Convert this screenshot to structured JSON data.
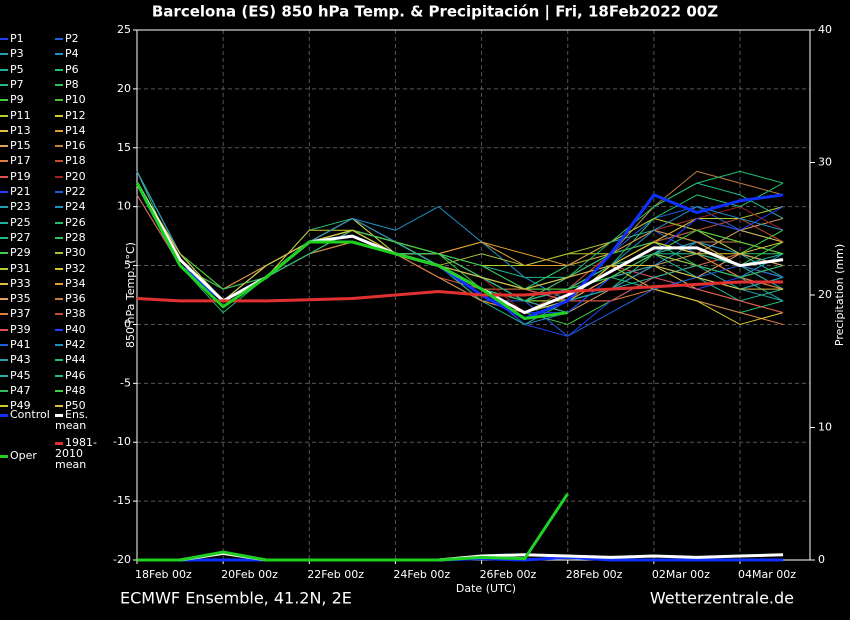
{
  "chart_data": {
    "type": "line",
    "title": "Barcelona  (ES)  850 hPa Temp. & Precipitación | Fri, 18Feb2022 00Z",
    "y_label": "850 hPa Temp. (°C)",
    "y2_label": "Precipitation (mm)",
    "x_label": "Date (UTC)",
    "footer_left": "ECMWF Ensemble, 41.2N, 2E",
    "footer_right": "Wetterzentrale.de",
    "grid": true,
    "x": [
      0,
      24,
      48,
      72,
      96,
      120,
      144,
      168,
      192,
      216,
      240,
      264,
      288,
      312,
      336,
      360
    ],
    "xlim": [
      0,
      375
    ],
    "xticks": [
      {
        "value": 0,
        "label": "18Feb 00z"
      },
      {
        "value": 48,
        "label": "20Feb 00z"
      },
      {
        "value": 96,
        "label": "22Feb 00z"
      },
      {
        "value": 144,
        "label": "24Feb 00z"
      },
      {
        "value": 192,
        "label": "26Feb 00z"
      },
      {
        "value": 240,
        "label": "28Feb 00z"
      },
      {
        "value": 288,
        "label": "02Mar 00z"
      },
      {
        "value": 336,
        "label": "04Mar 00z"
      }
    ],
    "ylim": [
      -20,
      25
    ],
    "yticks": [
      -20,
      -15,
      -10,
      -5,
      0,
      5,
      10,
      15,
      20,
      25
    ],
    "y2lim": [
      0,
      40
    ],
    "y2ticks": [
      0,
      10,
      20,
      30,
      40
    ],
    "series": [
      {
        "name": "P1",
        "color": "#2040ff",
        "values": [
          12,
          5,
          2,
          4,
          7,
          8,
          6,
          5,
          3,
          1,
          3,
          5,
          7,
          8,
          6,
          5
        ]
      },
      {
        "name": "P2",
        "color": "#2060e0",
        "values": [
          13,
          6,
          2,
          5,
          7,
          8,
          6,
          4,
          2,
          2,
          4,
          6,
          9,
          10,
          8,
          7
        ]
      },
      {
        "name": "P3",
        "color": "#20a0b0",
        "values": [
          12,
          5,
          2,
          4,
          6,
          7,
          6,
          6,
          4,
          3,
          2,
          3,
          5,
          4,
          3,
          2
        ]
      },
      {
        "name": "P4",
        "color": "#2090c8",
        "values": [
          12,
          6,
          2,
          4,
          7,
          8,
          7,
          5,
          3,
          0,
          1,
          4,
          6,
          5,
          4,
          6
        ]
      },
      {
        "name": "P5",
        "color": "#20b0a0",
        "values": [
          11,
          5,
          3,
          5,
          7,
          8,
          6,
          5,
          4,
          3,
          5,
          7,
          8,
          7,
          6,
          4
        ]
      },
      {
        "name": "P6",
        "color": "#20c070",
        "values": [
          12,
          5,
          1,
          4,
          8,
          9,
          7,
          5,
          2,
          1,
          3,
          4,
          3,
          2,
          1,
          2
        ]
      },
      {
        "name": "P7",
        "color": "#20b890",
        "values": [
          12,
          6,
          2,
          4,
          7,
          7,
          6,
          6,
          5,
          4,
          4,
          6,
          10,
          12,
          11,
          9
        ]
      },
      {
        "name": "P8",
        "color": "#30c060",
        "values": [
          13,
          5,
          2,
          4,
          6,
          8,
          7,
          5,
          3,
          2,
          2,
          3,
          6,
          7,
          5,
          4
        ]
      },
      {
        "name": "P9",
        "color": "#40d040",
        "values": [
          12,
          5,
          2,
          5,
          7,
          9,
          6,
          4,
          2,
          1,
          0,
          2,
          4,
          5,
          6,
          8
        ]
      },
      {
        "name": "P10",
        "color": "#50c030",
        "values": [
          12,
          5,
          2,
          4,
          7,
          8,
          6,
          5,
          4,
          2,
          3,
          5,
          7,
          6,
          5,
          3
        ]
      },
      {
        "name": "P11",
        "color": "#b0d030",
        "values": [
          12,
          6,
          3,
          5,
          7,
          8,
          7,
          6,
          5,
          5,
          6,
          6,
          8,
          9,
          9,
          10
        ]
      },
      {
        "name": "P12",
        "color": "#d8c830",
        "values": [
          13,
          6,
          2,
          4,
          8,
          8,
          6,
          5,
          3,
          1,
          2,
          4,
          5,
          3,
          2,
          1
        ]
      },
      {
        "name": "P13",
        "color": "#e0c040",
        "values": [
          12,
          5,
          2,
          4,
          6,
          7,
          6,
          5,
          4,
          3,
          4,
          6,
          7,
          6,
          4,
          5
        ]
      },
      {
        "name": "P14",
        "color": "#e0a030",
        "values": [
          12,
          5,
          2,
          4,
          7,
          8,
          6,
          6,
          7,
          5,
          5,
          7,
          9,
          8,
          7,
          6
        ]
      },
      {
        "name": "P15",
        "color": "#e0a060",
        "values": [
          12,
          6,
          2,
          5,
          7,
          8,
          6,
          5,
          3,
          2,
          1,
          3,
          5,
          6,
          8,
          9
        ]
      },
      {
        "name": "P16",
        "color": "#c08040",
        "values": [
          12,
          5,
          2,
          4,
          7,
          9,
          7,
          6,
          4,
          2,
          3,
          6,
          10,
          13,
          12,
          11
        ]
      },
      {
        "name": "P17",
        "color": "#e08040",
        "values": [
          11,
          5,
          2,
          4,
          6,
          7,
          6,
          5,
          3,
          3,
          2,
          2,
          3,
          2,
          1,
          0
        ]
      },
      {
        "name": "P18",
        "color": "#c05030",
        "values": [
          12,
          5,
          3,
          4,
          7,
          8,
          7,
          5,
          2,
          1,
          2,
          5,
          6,
          7,
          7,
          6
        ]
      },
      {
        "name": "P19",
        "color": "#e05050",
        "values": [
          12,
          6,
          2,
          4,
          7,
          8,
          6,
          4,
          3,
          2,
          4,
          5,
          4,
          5,
          6,
          5
        ]
      },
      {
        "name": "P20",
        "color": "#a02020",
        "values": [
          12,
          5,
          2,
          5,
          7,
          8,
          6,
          5,
          4,
          1,
          3,
          6,
          8,
          9,
          10,
          8
        ]
      },
      {
        "name": "P21",
        "color": "#2040ff",
        "values": [
          12,
          5,
          2,
          4,
          7,
          7,
          6,
          5,
          3,
          0,
          -1,
          2,
          4,
          3,
          4,
          5
        ]
      },
      {
        "name": "P22",
        "color": "#2060e0",
        "values": [
          13,
          6,
          2,
          4,
          7,
          8,
          7,
          6,
          5,
          3,
          4,
          6,
          8,
          6,
          5,
          4
        ]
      },
      {
        "name": "P23",
        "color": "#20a0b0",
        "values": [
          12,
          5,
          2,
          4,
          6,
          8,
          6,
          5,
          3,
          2,
          3,
          4,
          6,
          7,
          5,
          3
        ]
      },
      {
        "name": "P24",
        "color": "#2090c8",
        "values": [
          12,
          5,
          2,
          4,
          7,
          9,
          8,
          10,
          7,
          4,
          2,
          3,
          5,
          7,
          6,
          5
        ]
      },
      {
        "name": "P25",
        "color": "#20b0a0",
        "values": [
          12,
          6,
          2,
          5,
          7,
          8,
          6,
          5,
          4,
          2,
          1,
          4,
          6,
          5,
          3,
          4
        ]
      },
      {
        "name": "P26",
        "color": "#20c070",
        "values": [
          12,
          5,
          2,
          4,
          7,
          8,
          7,
          5,
          3,
          1,
          2,
          5,
          9,
          11,
          10,
          12
        ]
      },
      {
        "name": "P27",
        "color": "#20b890",
        "values": [
          11,
          5,
          2,
          4,
          7,
          8,
          6,
          5,
          2,
          0,
          2,
          4,
          6,
          4,
          2,
          3
        ]
      },
      {
        "name": "P28",
        "color": "#30c060",
        "values": [
          12,
          5,
          2,
          4,
          6,
          8,
          6,
          5,
          4,
          3,
          5,
          6,
          7,
          8,
          6,
          6
        ]
      },
      {
        "name": "P29",
        "color": "#40d040",
        "values": [
          12,
          6,
          3,
          4,
          7,
          8,
          7,
          6,
          3,
          2,
          3,
          5,
          7,
          6,
          5,
          7
        ]
      },
      {
        "name": "P30",
        "color": "#b0c030",
        "values": [
          12,
          5,
          2,
          4,
          7,
          8,
          6,
          5,
          6,
          5,
          6,
          7,
          9,
          8,
          6,
          5
        ]
      },
      {
        "name": "P31",
        "color": "#b0d030",
        "values": [
          13,
          6,
          2,
          4,
          7,
          8,
          6,
          5,
          3,
          2,
          2,
          4,
          6,
          5,
          4,
          3
        ]
      },
      {
        "name": "P32",
        "color": "#d8c830",
        "values": [
          12,
          5,
          2,
          5,
          7,
          8,
          7,
          5,
          4,
          2,
          3,
          5,
          3,
          2,
          0,
          1
        ]
      },
      {
        "name": "P33",
        "color": "#e0c040",
        "values": [
          12,
          5,
          2,
          4,
          7,
          9,
          6,
          6,
          4,
          3,
          3,
          5,
          7,
          9,
          8,
          7
        ]
      },
      {
        "name": "P34",
        "color": "#e0a030",
        "values": [
          12,
          5,
          2,
          4,
          6,
          8,
          6,
          6,
          7,
          6,
          5,
          6,
          8,
          7,
          5,
          4
        ]
      },
      {
        "name": "P35",
        "color": "#e0a060",
        "values": [
          12,
          6,
          2,
          4,
          7,
          8,
          7,
          5,
          3,
          1,
          2,
          4,
          5,
          4,
          6,
          5
        ]
      },
      {
        "name": "P36",
        "color": "#c08040",
        "values": [
          12,
          5,
          2,
          4,
          7,
          8,
          6,
          5,
          4,
          2,
          4,
          6,
          8,
          7,
          7,
          6
        ]
      },
      {
        "name": "P37",
        "color": "#e08040",
        "values": [
          12,
          5,
          3,
          5,
          7,
          8,
          6,
          4,
          2,
          1,
          2,
          5,
          7,
          6,
          4,
          3
        ]
      },
      {
        "name": "P38",
        "color": "#c05030",
        "values": [
          12,
          6,
          2,
          4,
          7,
          7,
          6,
          5,
          3,
          2,
          3,
          6,
          7,
          8,
          9,
          7
        ]
      },
      {
        "name": "P39",
        "color": "#e05050",
        "values": [
          11,
          5,
          2,
          4,
          7,
          8,
          7,
          5,
          4,
          3,
          2,
          2,
          4,
          3,
          2,
          1
        ]
      },
      {
        "name": "P40",
        "color": "#2040ff",
        "values": [
          12,
          5,
          2,
          4,
          7,
          8,
          6,
          5,
          3,
          1,
          1,
          4,
          6,
          9,
          8,
          10
        ]
      },
      {
        "name": "P41",
        "color": "#2060e0",
        "values": [
          12,
          5,
          2,
          4,
          6,
          8,
          6,
          5,
          3,
          2,
          -1,
          1,
          3,
          4,
          5,
          4
        ]
      },
      {
        "name": "P42",
        "color": "#2090c8",
        "values": [
          13,
          6,
          2,
          4,
          7,
          9,
          7,
          5,
          4,
          2,
          3,
          5,
          8,
          10,
          9,
          8
        ]
      },
      {
        "name": "P43",
        "color": "#20a0b0",
        "values": [
          12,
          5,
          2,
          5,
          7,
          8,
          6,
          5,
          3,
          2,
          3,
          4,
          5,
          4,
          3,
          4
        ]
      },
      {
        "name": "P44",
        "color": "#20c070",
        "values": [
          12,
          5,
          2,
          4,
          7,
          8,
          6,
          6,
          4,
          3,
          4,
          7,
          10,
          12,
          13,
          12
        ]
      },
      {
        "name": "P45",
        "color": "#20b0a0",
        "values": [
          12,
          6,
          2,
          4,
          7,
          8,
          7,
          5,
          3,
          1,
          2,
          3,
          4,
          5,
          4,
          2
        ]
      },
      {
        "name": "P46",
        "color": "#20b890",
        "values": [
          12,
          5,
          2,
          4,
          7,
          8,
          6,
          5,
          4,
          2,
          3,
          5,
          6,
          6,
          5,
          6
        ]
      },
      {
        "name": "P47",
        "color": "#30c060",
        "values": [
          12,
          5,
          3,
          4,
          6,
          8,
          6,
          5,
          3,
          2,
          4,
          6,
          7,
          5,
          4,
          5
        ]
      },
      {
        "name": "P48",
        "color": "#40d040",
        "values": [
          12,
          5,
          2,
          4,
          7,
          8,
          7,
          6,
          5,
          3,
          3,
          4,
          6,
          8,
          7,
          6
        ]
      },
      {
        "name": "P49",
        "color": "#d8c830",
        "values": [
          12,
          6,
          2,
          4,
          7,
          8,
          6,
          5,
          3,
          1,
          2,
          5,
          7,
          6,
          6,
          7
        ]
      },
      {
        "name": "P50",
        "color": "#e0c040",
        "values": [
          12,
          5,
          2,
          5,
          7,
          8,
          6,
          5,
          4,
          3,
          4,
          5,
          5,
          4,
          3,
          3
        ]
      },
      {
        "name": "Control",
        "color": "#1030ff",
        "width": 3,
        "values": [
          12,
          5,
          2,
          4,
          7,
          7.5,
          6,
          5,
          2.5,
          0.5,
          2,
          6,
          11,
          9.5,
          10.5,
          11
        ],
        "precip": [
          0,
          0,
          0,
          0,
          0,
          0,
          0,
          0,
          0.1,
          0,
          0.2,
          0,
          0,
          0,
          0,
          0
        ]
      },
      {
        "name": "Ens. mean",
        "color": "#ffffff",
        "width": 3,
        "values": [
          12,
          5.5,
          2,
          4,
          7,
          7.5,
          6,
          5,
          3,
          1,
          2.5,
          4.5,
          6.5,
          6.5,
          5,
          5.5
        ],
        "precip": [
          0,
          0,
          0.5,
          0,
          0,
          0,
          0,
          0,
          0.3,
          0.4,
          0.3,
          0.2,
          0.3,
          0.2,
          0.3,
          0.4
        ]
      },
      {
        "name": "1981-2010 mean",
        "color": "#e03030",
        "width": 3,
        "values": [
          2.2,
          2,
          2,
          2,
          2.1,
          2.2,
          2.5,
          2.8,
          2.5,
          2.5,
          2.8,
          3,
          3.2,
          3.4,
          3.6,
          3.6
        ]
      },
      {
        "name": "Oper",
        "color": "#20d020",
        "width": 3,
        "values": [
          12,
          5,
          1.5,
          4,
          7,
          7,
          6,
          5,
          3,
          0.5,
          1,
          null,
          null,
          null,
          null,
          null
        ],
        "precip": [
          0,
          0,
          0.6,
          0,
          0,
          0,
          0,
          0,
          0.2,
          0.1,
          5,
          null,
          null,
          null,
          null,
          null
        ]
      }
    ]
  }
}
